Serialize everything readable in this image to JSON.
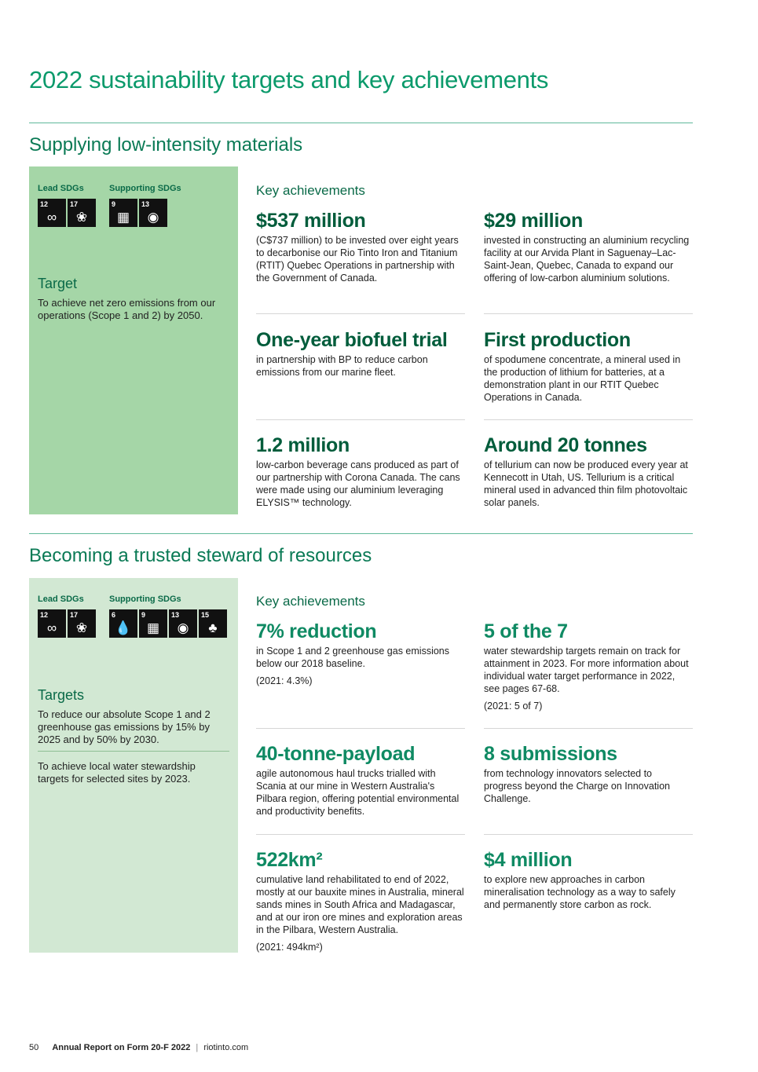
{
  "title": "2022 sustainability targets and key achievements",
  "section1": {
    "heading": "Supplying low-intensity materials",
    "lead_label": "Lead SDGs",
    "supporting_label": "Supporting SDGs",
    "lead_sdgs": [
      {
        "num": "12",
        "icon": "infinity-icon",
        "glyph": "∞"
      },
      {
        "num": "17",
        "icon": "flower-icon",
        "glyph": "❀"
      }
    ],
    "supporting_sdgs": [
      {
        "num": "9",
        "icon": "cubes-icon",
        "glyph": "▦"
      },
      {
        "num": "13",
        "icon": "eye-globe-icon",
        "glyph": "◉"
      }
    ],
    "target_heading": "Target",
    "target_text": "To achieve net zero emissions from our operations (Scope 1 and 2) by 2050.",
    "key_label": "Key achievements",
    "items": [
      {
        "headline": "$537 million",
        "text": "(C$737 million) to be invested over eight years to decarbonise our Rio Tinto Iron and Titanium (RTIT) Quebec Operations in partnership with the Government of Canada."
      },
      {
        "headline": "$29 million",
        "text": "invested in constructing an aluminium recycling facility at our Arvida Plant in Saguenay–Lac-Saint-Jean, Quebec, Canada to expand our offering of low-carbon aluminium solutions."
      },
      {
        "headline": "One-year biofuel trial",
        "text": "in partnership with BP to reduce carbon emissions from our marine fleet."
      },
      {
        "headline": "First production",
        "text": "of spodumene concentrate, a mineral used in the production of lithium for batteries, at a demonstration plant in our RTIT Quebec Operations in Canada."
      },
      {
        "headline": "1.2 million",
        "text": "low-carbon beverage cans produced as part of our partnership with Corona Canada. The cans were made using our aluminium leveraging ELYSIS™ technology."
      },
      {
        "headline": "Around 20 tonnes",
        "text": "of tellurium can now be produced every year at Kennecott in Utah, US. Tellurium is a critical mineral used in advanced thin film photovoltaic solar panels."
      }
    ]
  },
  "section2": {
    "heading": "Becoming a trusted steward of resources",
    "lead_label": "Lead SDGs",
    "supporting_label": "Supporting SDGs",
    "lead_sdgs": [
      {
        "num": "12",
        "icon": "infinity-icon",
        "glyph": "∞"
      },
      {
        "num": "17",
        "icon": "flower-icon",
        "glyph": "❀"
      }
    ],
    "supporting_sdgs": [
      {
        "num": "6",
        "icon": "water-drop-icon",
        "glyph": "💧"
      },
      {
        "num": "9",
        "icon": "cubes-icon",
        "glyph": "▦"
      },
      {
        "num": "13",
        "icon": "eye-globe-icon",
        "glyph": "◉"
      },
      {
        "num": "15",
        "icon": "tree-icon",
        "glyph": "♣"
      }
    ],
    "target_heading": "Targets",
    "target_text_1": "To reduce our absolute Scope 1 and 2 greenhouse gas emissions by 15% by 2025 and by 50% by 2030.",
    "target_text_2": "To achieve local water stewardship targets for selected sites by 2023.",
    "key_label": "Key achievements",
    "items": [
      {
        "headline": "7% reduction",
        "text": "in Scope 1 and 2 greenhouse gas emissions below our 2018 baseline.",
        "sub": "(2021: 4.3%)"
      },
      {
        "headline": "5 of the 7",
        "text": "water stewardship targets remain on track for attainment in 2023. For more information about individual water target performance in 2022, see pages 67-68.",
        "sub": "(2021: 5 of 7)"
      },
      {
        "headline": "40-tonne-payload",
        "text": "agile autonomous haul trucks trialled with Scania at our mine in Western Australia's Pilbara region, offering potential environmental and productivity benefits."
      },
      {
        "headline": "8 submissions",
        "text": "from technology innovators selected to progress beyond the Charge on Innovation Challenge."
      },
      {
        "headline": "522km²",
        "text": "cumulative land rehabilitated to end of 2022, mostly at our bauxite mines in Australia, mineral sands mines in South Africa and Madagascar, and at our iron ore mines and exploration areas in the Pilbara, Western Australia.",
        "sub": "(2021: 494km²)"
      },
      {
        "headline": "$4 million",
        "text": "to explore new approaches in carbon mineralisation technology as a way to safely and permanently store carbon as rock."
      }
    ]
  },
  "footer": {
    "page": "50",
    "report": "Annual Report on Form 20-F 2022",
    "separator": "|",
    "site": "riotinto.com"
  }
}
